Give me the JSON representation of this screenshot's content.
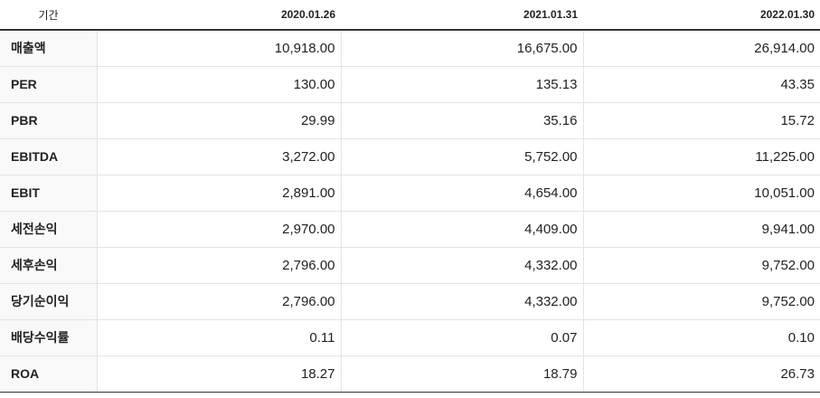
{
  "table": {
    "header": {
      "label": "기간",
      "periods": [
        "2020.01.26",
        "2021.01.31",
        "2022.01.30"
      ]
    },
    "rows": [
      {
        "label": "매출액",
        "values": [
          "10,918.00",
          "16,675.00",
          "26,914.00"
        ]
      },
      {
        "label": "PER",
        "values": [
          "130.00",
          "135.13",
          "43.35"
        ]
      },
      {
        "label": "PBR",
        "values": [
          "29.99",
          "35.16",
          "15.72"
        ]
      },
      {
        "label": "EBITDA",
        "values": [
          "3,272.00",
          "5,752.00",
          "11,225.00"
        ]
      },
      {
        "label": "EBIT",
        "values": [
          "2,891.00",
          "4,654.00",
          "10,051.00"
        ]
      },
      {
        "label": "세전손익",
        "values": [
          "2,970.00",
          "4,409.00",
          "9,941.00"
        ]
      },
      {
        "label": "세후손익",
        "values": [
          "2,796.00",
          "4,332.00",
          "9,752.00"
        ]
      },
      {
        "label": "당기순이익",
        "values": [
          "2,796.00",
          "4,332.00",
          "9,752.00"
        ]
      },
      {
        "label": "배당수익률",
        "values": [
          "0.11",
          "0.07",
          "0.10"
        ]
      },
      {
        "label": "ROA",
        "values": [
          "18.27",
          "18.79",
          "26.73"
        ]
      }
    ]
  }
}
